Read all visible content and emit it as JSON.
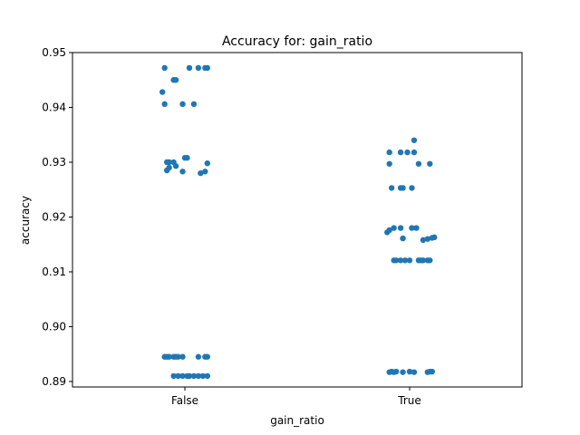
{
  "chart_data": {
    "type": "scatter",
    "title": "Accuracy for: gain_ratio",
    "xlabel": "gain_ratio",
    "ylabel": "accuracy",
    "categories": [
      "False",
      "True"
    ],
    "ylim": [
      0.889,
      0.95
    ],
    "yticks": [
      0.89,
      0.9,
      0.91,
      0.92,
      0.93,
      0.94,
      0.95
    ],
    "ytick_labels": [
      "0.89",
      "0.90",
      "0.91",
      "0.92",
      "0.93",
      "0.94",
      "0.95"
    ],
    "grid": false,
    "point_color": "#1f77b4",
    "series": [
      {
        "category": "False",
        "points": [
          {
            "j": -0.09,
            "y": 0.9472
          },
          {
            "j": 0.02,
            "y": 0.9472
          },
          {
            "j": 0.06,
            "y": 0.9472
          },
          {
            "j": 0.09,
            "y": 0.9472
          },
          {
            "j": 0.1,
            "y": 0.9472
          },
          {
            "j": -0.05,
            "y": 0.945
          },
          {
            "j": -0.04,
            "y": 0.945
          },
          {
            "j": -0.1,
            "y": 0.9428
          },
          {
            "j": -0.09,
            "y": 0.9406
          },
          {
            "j": -0.01,
            "y": 0.9406
          },
          {
            "j": 0.04,
            "y": 0.9406
          },
          {
            "j": 0.0,
            "y": 0.9308
          },
          {
            "j": 0.01,
            "y": 0.9308
          },
          {
            "j": -0.08,
            "y": 0.93
          },
          {
            "j": -0.07,
            "y": 0.93
          },
          {
            "j": -0.05,
            "y": 0.93
          },
          {
            "j": 0.1,
            "y": 0.9298
          },
          {
            "j": -0.04,
            "y": 0.9293
          },
          {
            "j": -0.07,
            "y": 0.929
          },
          {
            "j": -0.08,
            "y": 0.9285
          },
          {
            "j": -0.01,
            "y": 0.9283
          },
          {
            "j": 0.09,
            "y": 0.9283
          },
          {
            "j": 0.07,
            "y": 0.928
          },
          {
            "j": -0.09,
            "y": 0.8945
          },
          {
            "j": -0.08,
            "y": 0.8945
          },
          {
            "j": -0.07,
            "y": 0.8945
          },
          {
            "j": -0.05,
            "y": 0.8945
          },
          {
            "j": -0.04,
            "y": 0.8945
          },
          {
            "j": -0.03,
            "y": 0.8945
          },
          {
            "j": -0.01,
            "y": 0.8945
          },
          {
            "j": 0.06,
            "y": 0.8945
          },
          {
            "j": 0.09,
            "y": 0.8945
          },
          {
            "j": 0.1,
            "y": 0.8945
          },
          {
            "j": -0.05,
            "y": 0.891
          },
          {
            "j": -0.03,
            "y": 0.891
          },
          {
            "j": -0.01,
            "y": 0.891
          },
          {
            "j": 0.01,
            "y": 0.891
          },
          {
            "j": 0.02,
            "y": 0.891
          },
          {
            "j": 0.04,
            "y": 0.891
          },
          {
            "j": 0.06,
            "y": 0.891
          },
          {
            "j": 0.08,
            "y": 0.891
          },
          {
            "j": 0.1,
            "y": 0.891
          }
        ]
      },
      {
        "category": "True",
        "points": [
          {
            "j": 0.02,
            "y": 0.934
          },
          {
            "j": -0.09,
            "y": 0.9318
          },
          {
            "j": -0.04,
            "y": 0.9318
          },
          {
            "j": -0.01,
            "y": 0.9318
          },
          {
            "j": 0.02,
            "y": 0.9318
          },
          {
            "j": -0.09,
            "y": 0.9297
          },
          {
            "j": 0.04,
            "y": 0.9297
          },
          {
            "j": 0.09,
            "y": 0.9297
          },
          {
            "j": -0.08,
            "y": 0.9253
          },
          {
            "j": -0.04,
            "y": 0.9253
          },
          {
            "j": -0.03,
            "y": 0.9253
          },
          {
            "j": 0.01,
            "y": 0.9253
          },
          {
            "j": -0.07,
            "y": 0.918
          },
          {
            "j": -0.04,
            "y": 0.918
          },
          {
            "j": 0.01,
            "y": 0.918
          },
          {
            "j": 0.03,
            "y": 0.918
          },
          {
            "j": -0.09,
            "y": 0.9176
          },
          {
            "j": -0.1,
            "y": 0.9172
          },
          {
            "j": 0.11,
            "y": 0.9163
          },
          {
            "j": 0.1,
            "y": 0.9162
          },
          {
            "j": -0.03,
            "y": 0.9161
          },
          {
            "j": 0.08,
            "y": 0.916
          },
          {
            "j": 0.06,
            "y": 0.9158
          },
          {
            "j": -0.07,
            "y": 0.9121
          },
          {
            "j": -0.06,
            "y": 0.9121
          },
          {
            "j": -0.04,
            "y": 0.9121
          },
          {
            "j": -0.02,
            "y": 0.9121
          },
          {
            "j": 0.0,
            "y": 0.9121
          },
          {
            "j": 0.04,
            "y": 0.9121
          },
          {
            "j": 0.05,
            "y": 0.9121
          },
          {
            "j": 0.06,
            "y": 0.9121
          },
          {
            "j": 0.08,
            "y": 0.9121
          },
          {
            "j": 0.09,
            "y": 0.9121
          },
          {
            "j": -0.09,
            "y": 0.8917
          },
          {
            "j": -0.08,
            "y": 0.8918
          },
          {
            "j": -0.07,
            "y": 0.8917
          },
          {
            "j": -0.06,
            "y": 0.8918
          },
          {
            "j": -0.03,
            "y": 0.8917
          },
          {
            "j": 0.0,
            "y": 0.8918
          },
          {
            "j": 0.02,
            "y": 0.8917
          },
          {
            "j": 0.08,
            "y": 0.8917
          },
          {
            "j": 0.09,
            "y": 0.8918
          },
          {
            "j": 0.1,
            "y": 0.8918
          }
        ]
      }
    ]
  }
}
